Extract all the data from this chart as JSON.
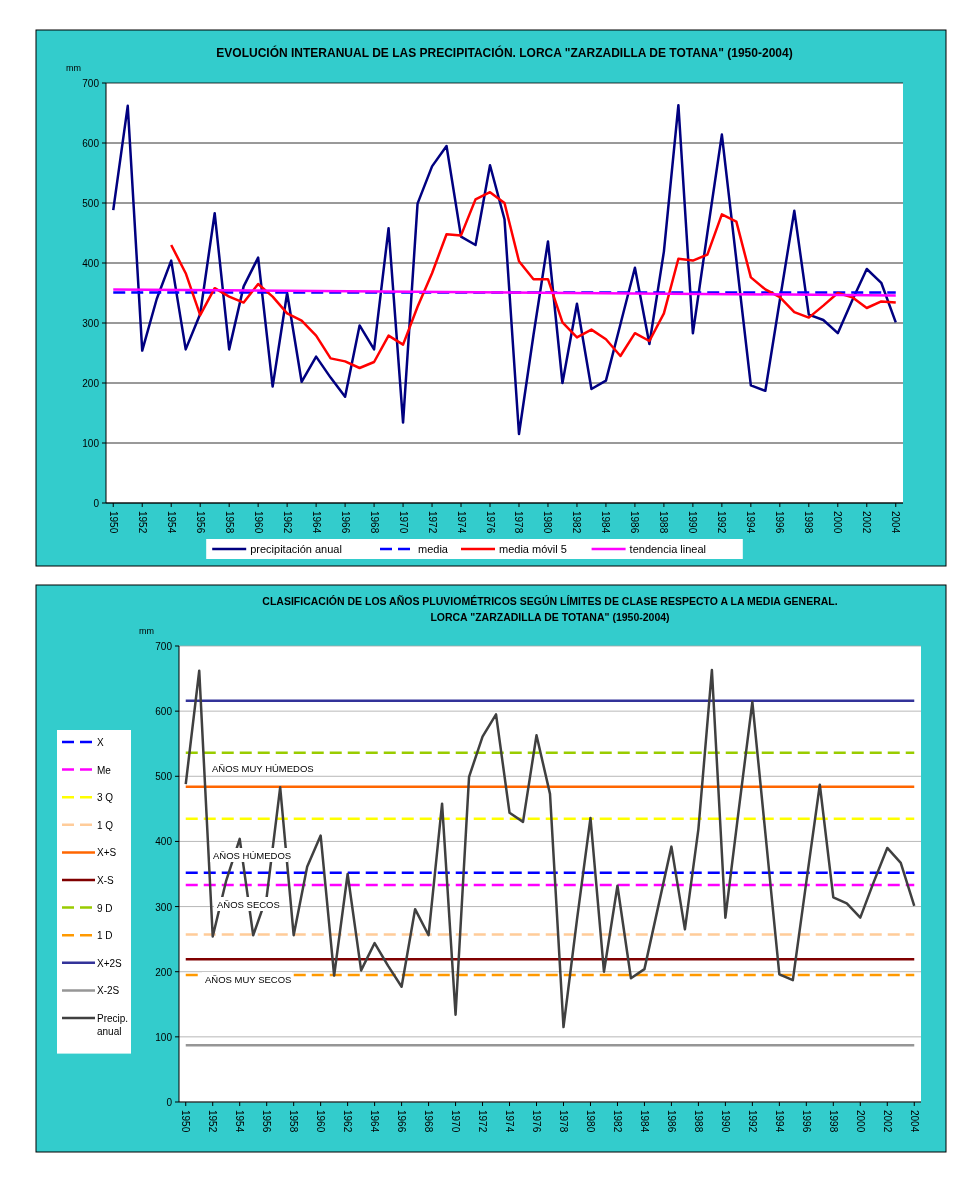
{
  "chart_data": [
    {
      "type": "line",
      "title": "EVOLUCIÓN INTERANUAL DE LAS PRECIPITACIÓN. LORCA \"ZARZADILLA DE TOTANA\" (1950-2004)",
      "ylabel": "mm",
      "x": [
        1950,
        1951,
        1952,
        1953,
        1954,
        1955,
        1956,
        1957,
        1958,
        1959,
        1960,
        1961,
        1962,
        1963,
        1964,
        1965,
        1966,
        1967,
        1968,
        1969,
        1970,
        1971,
        1972,
        1973,
        1974,
        1975,
        1976,
        1977,
        1978,
        1979,
        1980,
        1981,
        1982,
        1983,
        1984,
        1985,
        1986,
        1987,
        1988,
        1989,
        1990,
        1991,
        1992,
        1993,
        1994,
        1995,
        1996,
        1997,
        1998,
        1999,
        2000,
        2001,
        2002,
        2003,
        2004
      ],
      "xlim": [
        1949.5,
        2004.5
      ],
      "xticks": [
        1950,
        1952,
        1954,
        1956,
        1958,
        1960,
        1962,
        1964,
        1966,
        1968,
        1970,
        1972,
        1974,
        1976,
        1978,
        1980,
        1982,
        1984,
        1986,
        1988,
        1990,
        1992,
        1994,
        1996,
        1998,
        2000,
        2002,
        2004
      ],
      "ylim": [
        0,
        700
      ],
      "yticks": [
        0,
        100,
        200,
        300,
        400,
        500,
        600,
        700
      ],
      "grid": "y",
      "legend": "bottom",
      "series": [
        {
          "name": "precipitación anual",
          "color": "#000080",
          "values": [
            488,
            662,
            254,
            340,
            404,
            256,
            315,
            483,
            256,
            361,
            409,
            194,
            350,
            202,
            244,
            209,
            177,
            296,
            256,
            458,
            134,
            499,
            561,
            595,
            444,
            430,
            563,
            473,
            115,
            280,
            436,
            200,
            332,
            190,
            204,
            298,
            392,
            265,
            419,
            663,
            283,
            450,
            614,
            405,
            196,
            187,
            338,
            487,
            314,
            305,
            283,
            338,
            390,
            367,
            301
          ]
        },
        {
          "name": "media",
          "color": "#0000ff",
          "line_style": "dashed",
          "x": [
            1950,
            2004
          ],
          "values": [
            351,
            351
          ]
        },
        {
          "name": "media móvil 5",
          "color": "#ff0000",
          "x": [
            1954,
            1955,
            1956,
            1957,
            1958,
            1959,
            1960,
            1961,
            1962,
            1963,
            1964,
            1965,
            1966,
            1967,
            1968,
            1969,
            1970,
            1971,
            1972,
            1973,
            1974,
            1975,
            1976,
            1977,
            1978,
            1979,
            1980,
            1981,
            1982,
            1983,
            1984,
            1985,
            1986,
            1987,
            1988,
            1989,
            1990,
            1991,
            1992,
            1993,
            1994,
            1995,
            1996,
            1997,
            1998,
            1999,
            2000,
            2001,
            2002,
            2003,
            2004
          ],
          "values": [
            430,
            383,
            313,
            358,
            344,
            334,
            365,
            344,
            316,
            304,
            279,
            241,
            236,
            225,
            235,
            279,
            264,
            327,
            383,
            448,
            446,
            506,
            518,
            500,
            403,
            373,
            373,
            301,
            276,
            289,
            273,
            245,
            283,
            270,
            316,
            407,
            404,
            414,
            481,
            469,
            376,
            356,
            343,
            318,
            309,
            329,
            350,
            343,
            325,
            336,
            334
          ]
        },
        {
          "name": "tendencia lineal",
          "color": "#ff00ff",
          "x": [
            1950,
            2004
          ],
          "values": [
            356,
            346
          ]
        }
      ]
    },
    {
      "type": "line",
      "title": "CLASIFICACIÓN DE LOS AÑOS PLUVIOMÉTRICOS SEGÚN LÍMITES DE CLASE RESPECTO A LA MEDIA GENERAL. LORCA \"ZARZADILLA DE TOTANA\" (1950-2004)",
      "ylabel": "mm",
      "x": [
        1950,
        1951,
        1952,
        1953,
        1954,
        1955,
        1956,
        1957,
        1958,
        1959,
        1960,
        1961,
        1962,
        1963,
        1964,
        1965,
        1966,
        1967,
        1968,
        1969,
        1970,
        1971,
        1972,
        1973,
        1974,
        1975,
        1976,
        1977,
        1978,
        1979,
        1980,
        1981,
        1982,
        1983,
        1984,
        1985,
        1986,
        1987,
        1988,
        1989,
        1990,
        1991,
        1992,
        1993,
        1994,
        1995,
        1996,
        1997,
        1998,
        1999,
        2000,
        2001,
        2002,
        2003,
        2004
      ],
      "xlim": [
        1949.5,
        2004.5
      ],
      "xticks": [
        1950,
        1952,
        1954,
        1956,
        1958,
        1960,
        1962,
        1964,
        1966,
        1968,
        1970,
        1972,
        1974,
        1976,
        1978,
        1980,
        1982,
        1984,
        1986,
        1988,
        1990,
        1992,
        1994,
        1996,
        1998,
        2000,
        2002,
        2004
      ],
      "ylim": [
        0,
        700
      ],
      "yticks": [
        0,
        100,
        200,
        300,
        400,
        500,
        600,
        700
      ],
      "grid": "y",
      "legend": "left",
      "annotations": [
        "AÑOS MUY HÚMEDOS",
        "AÑOS HÚMEDOS",
        "AÑOS SECOS",
        "AÑOS MUY SECOS"
      ],
      "series": [
        {
          "name": "X",
          "color": "#0000ff",
          "line_style": "dashed",
          "x": [
            1950,
            2004
          ],
          "values": [
            352,
            352
          ]
        },
        {
          "name": "Me",
          "color": "#ff00ff",
          "line_style": "dashed",
          "x": [
            1950,
            2004
          ],
          "values": [
            333,
            333
          ]
        },
        {
          "name": "3 Q",
          "color": "#ffff00",
          "line_style": "dashed",
          "x": [
            1950,
            2004
          ],
          "values": [
            435,
            435
          ]
        },
        {
          "name": "1 Q",
          "color": "#ffcc99",
          "line_style": "dashed",
          "x": [
            1950,
            2004
          ],
          "values": [
            257,
            257
          ]
        },
        {
          "name": "X+S",
          "color": "#ff6600",
          "x": [
            1950,
            2004
          ],
          "values": [
            484,
            484
          ]
        },
        {
          "name": "X-S",
          "color": "#800000",
          "x": [
            1950,
            2004
          ],
          "values": [
            219,
            219
          ]
        },
        {
          "name": "9 D",
          "color": "#99cc00",
          "line_style": "dashed",
          "x": [
            1950,
            2004
          ],
          "values": [
            536,
            536
          ]
        },
        {
          "name": "1 D",
          "color": "#ff9900",
          "line_style": "dashed",
          "x": [
            1950,
            2004
          ],
          "values": [
            195,
            195
          ]
        },
        {
          "name": "X+2S",
          "color": "#333399",
          "x": [
            1950,
            2004
          ],
          "values": [
            616,
            616
          ]
        },
        {
          "name": "X-2S",
          "color": "#969696",
          "x": [
            1950,
            2004
          ],
          "values": [
            87,
            87
          ]
        },
        {
          "name": "Precip. anual",
          "color": "#404040",
          "values": [
            488,
            662,
            254,
            340,
            404,
            256,
            315,
            483,
            256,
            361,
            409,
            194,
            350,
            202,
            244,
            209,
            177,
            296,
            256,
            458,
            134,
            499,
            561,
            595,
            444,
            430,
            563,
            473,
            115,
            280,
            436,
            200,
            332,
            190,
            204,
            298,
            392,
            265,
            419,
            663,
            283,
            450,
            614,
            405,
            196,
            187,
            338,
            487,
            314,
            305,
            283,
            338,
            390,
            367,
            301
          ]
        }
      ]
    }
  ]
}
